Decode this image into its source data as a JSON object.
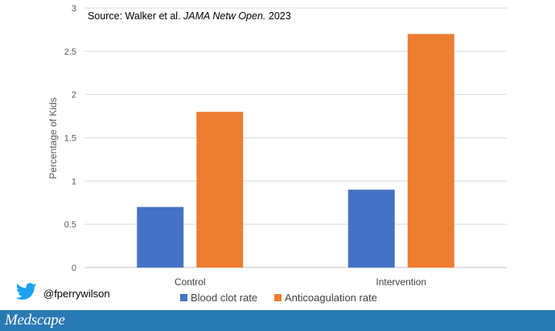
{
  "chart_data": {
    "type": "bar",
    "title": "",
    "annotation": {
      "prefix": "Source: Walker et al. ",
      "journal": "JAMA Netw Open.",
      "suffix": " 2023"
    },
    "categories": [
      "Control",
      "Intervention"
    ],
    "series": [
      {
        "name": "Blood clot rate",
        "values": [
          0.7,
          0.9
        ],
        "color": "#4472c4"
      },
      {
        "name": "Anticoagulation rate",
        "values": [
          1.8,
          2.7
        ],
        "color": "#ed7d31"
      }
    ],
    "xlabel": "",
    "ylabel": "Percentage of Kids",
    "ylim": [
      0,
      3
    ],
    "yticks": [
      0,
      0.5,
      1,
      1.5,
      2,
      2.5,
      3
    ],
    "ytick_labels": [
      "0",
      "0.5",
      "1",
      "1.5",
      "2",
      "2.5",
      "3"
    ],
    "grid": true,
    "legend_position": "bottom"
  },
  "social": {
    "handle": "@fperrywilson",
    "icon": "twitter-bird-icon",
    "icon_color": "#1da1f2"
  },
  "footer": {
    "brand": "Medscape",
    "bar_color": "#2979b5"
  }
}
